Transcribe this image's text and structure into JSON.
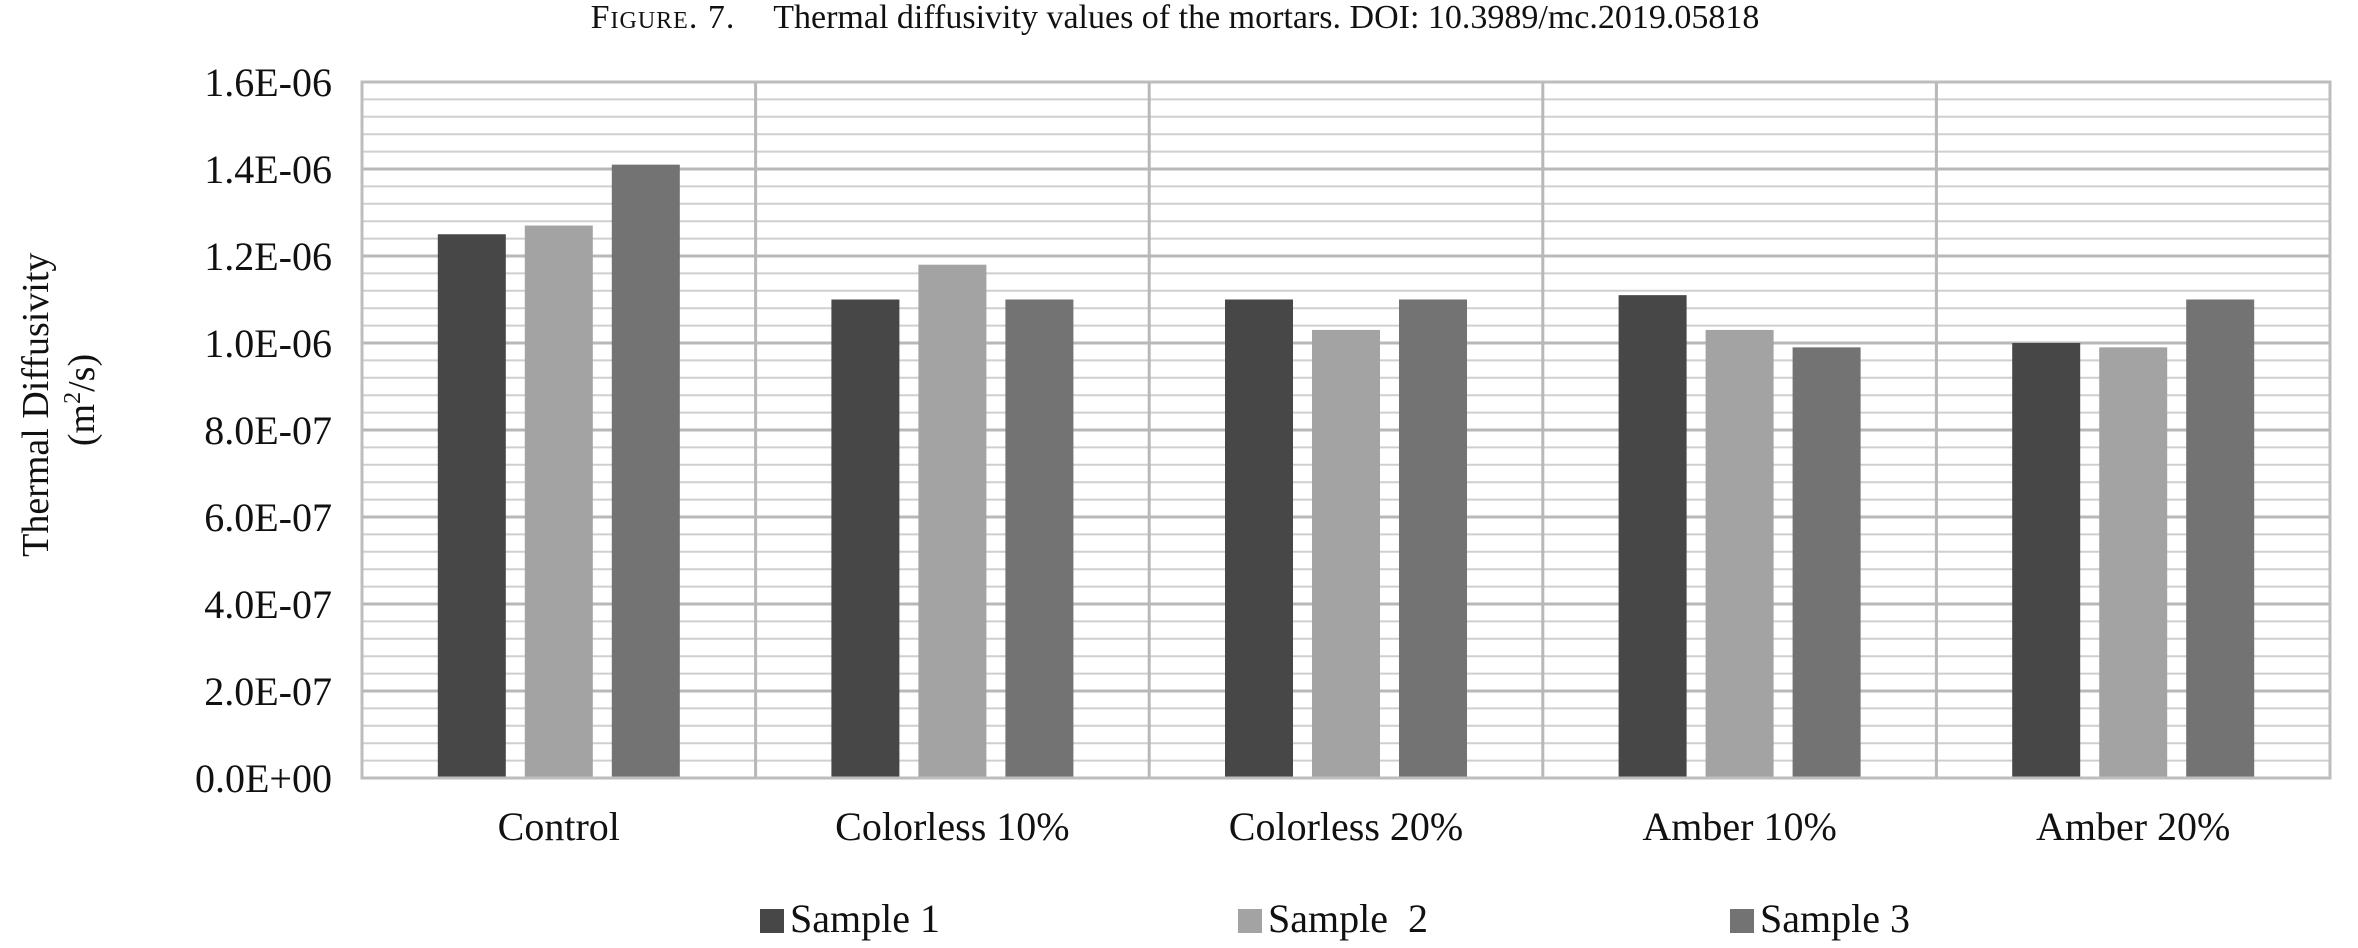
{
  "caption": {
    "prefix": "Figure. 7.",
    "text": "Thermal diffusivity values of the mortars. DOI: 10.3989/mc.2019.05818"
  },
  "colors": {
    "Sample 1": "#474747",
    "Sample  2": "#a3a3a3",
    "Sample 3": "#737373",
    "grid": "#cfcfcf",
    "grid_major": "#b8b8b8",
    "frame": "#bdbdbd"
  },
  "chart_data": {
    "type": "bar",
    "title": "",
    "xlabel": "",
    "ylabel_line1": "Thermal Diffusivity",
    "ylabel_line2_base": "(m",
    "ylabel_line2_sup": "2",
    "ylabel_line2_end": "/s)",
    "ylim": [
      0,
      1.6e-06
    ],
    "ytick_labels": [
      "0.0E+00",
      "2.0E-07",
      "4.0E-07",
      "6.0E-07",
      "8.0E-07",
      "1.0E-06",
      "1.2E-06",
      "1.4E-06",
      "1.6E-06"
    ],
    "minor_grid_step": 4e-08,
    "categories": [
      "Control",
      "Colorless 10%",
      "Colorless 20%",
      "Amber 10%",
      "Amber 20%"
    ],
    "series": [
      {
        "name": "Sample 1",
        "values": [
          1.25e-06,
          1.1e-06,
          1.1e-06,
          1.11e-06,
          1e-06
        ]
      },
      {
        "name": "Sample  2",
        "values": [
          1.27e-06,
          1.18e-06,
          1.03e-06,
          1.03e-06,
          9.9e-07
        ]
      },
      {
        "name": "Sample 3",
        "values": [
          1.41e-06,
          1.1e-06,
          1.1e-06,
          9.9e-07,
          1.1e-06
        ]
      }
    ],
    "grid": true,
    "legend_position": "bottom"
  }
}
